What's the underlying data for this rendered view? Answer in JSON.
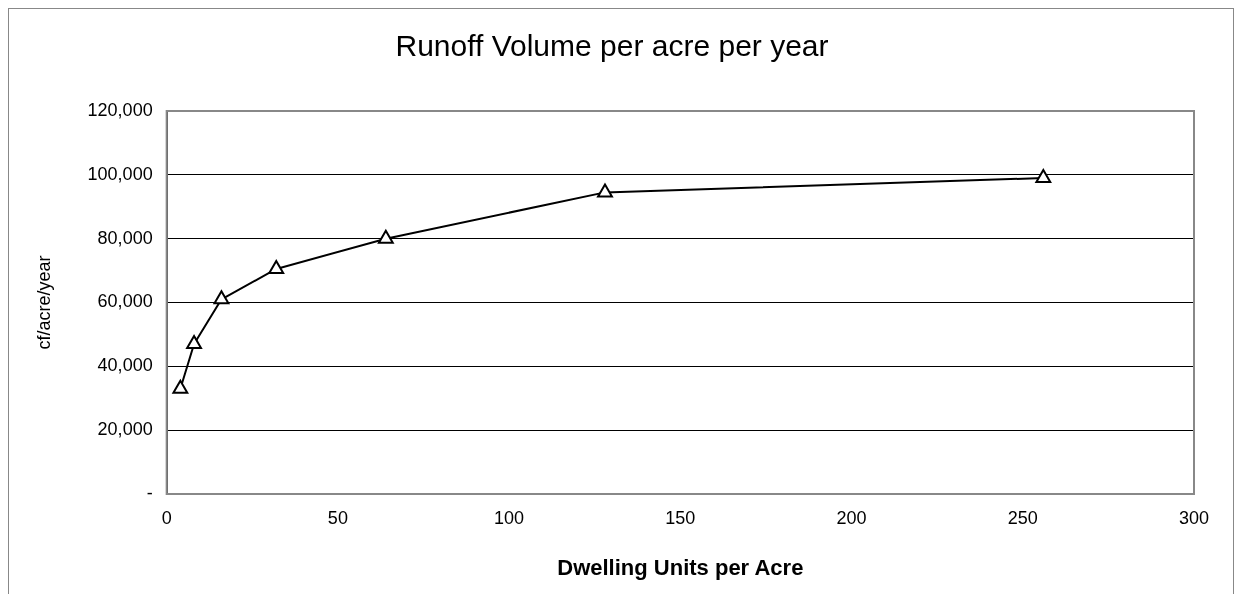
{
  "chart_data": {
    "type": "line",
    "title": "Runoff Volume per acre per year",
    "xlabel": "Dwelling Units per Acre",
    "ylabel": "cf/acre/year",
    "x": [
      4,
      8,
      16,
      32,
      64,
      128,
      256
    ],
    "series": [
      {
        "color": "#000000",
        "values": [
          33000,
          47000,
          61000,
          70500,
          80000,
          94500,
          99000
        ]
      }
    ],
    "xlim": [
      0,
      300
    ],
    "xticks": [
      0,
      50,
      100,
      150,
      200,
      250,
      300
    ],
    "ylim": [
      0,
      120000
    ],
    "yticks": [
      {
        "value": 0,
        "label": "-"
      },
      {
        "value": 20000,
        "label": "20,000"
      },
      {
        "value": 40000,
        "label": "40,000"
      },
      {
        "value": 60000,
        "label": "60,000"
      },
      {
        "value": 80000,
        "label": "80,000"
      },
      {
        "value": 100000,
        "label": "100,000"
      },
      {
        "value": 120000,
        "label": "120,000"
      }
    ],
    "grid": "y",
    "legend": false,
    "marker": "triangle",
    "line_style": "solid"
  }
}
